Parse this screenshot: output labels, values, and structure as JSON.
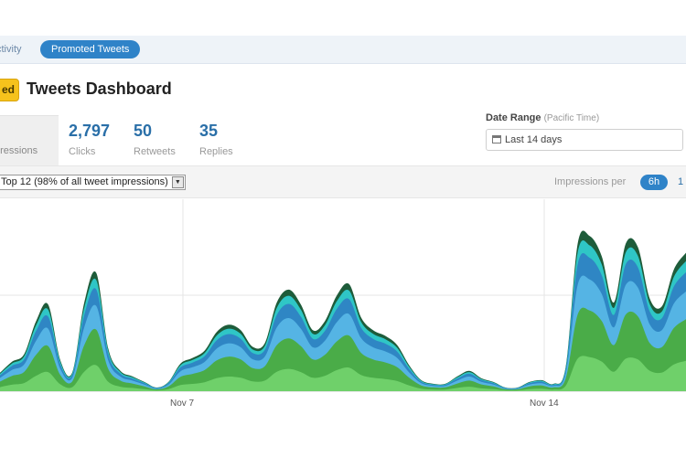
{
  "nav": {
    "tab_activity": "ctivity",
    "tab_promoted": "Promoted Tweets"
  },
  "header": {
    "badge": "ed",
    "title": "Tweets Dashboard"
  },
  "stats": [
    {
      "value": "",
      "label": "pressions"
    },
    {
      "value": "2,797",
      "label": "Clicks"
    },
    {
      "value": "50",
      "label": "Retweets"
    },
    {
      "value": "35",
      "label": "Replies"
    }
  ],
  "date_range": {
    "label": "Date Range",
    "sublabel": "(Pacific Time)",
    "value": "Last 14 days"
  },
  "toolbar": {
    "filter_value": "Top 12 (98% of all tweet impressions)",
    "impressions_per_label": "Impressions per",
    "interval_selected": "6h",
    "interval_next": "1"
  },
  "colors": {
    "accent": "#2f83c8",
    "series_dark_green": "#1e5c3a",
    "series_teal": "#2fc6c6",
    "series_blue": "#2f86c4",
    "series_light_blue": "#55b4e4",
    "series_green": "#4aac48",
    "series_light_green": "#6fd06a"
  },
  "chart_data": {
    "type": "area",
    "stacked": true,
    "x_tick_labels": [
      "Nov 7",
      "Nov 14"
    ],
    "grid": true,
    "series_colors": [
      "#6fd06a",
      "#4aac48",
      "#55b4e4",
      "#2f86c4",
      "#2fc6c6",
      "#1e5c3a"
    ],
    "totals": [
      0.1,
      0.16,
      0.2,
      0.38,
      0.47,
      0.17,
      0.1,
      0.48,
      0.64,
      0.23,
      0.11,
      0.08,
      0.05,
      0.02,
      0.05,
      0.15,
      0.18,
      0.22,
      0.32,
      0.36,
      0.33,
      0.24,
      0.26,
      0.48,
      0.55,
      0.47,
      0.33,
      0.38,
      0.52,
      0.58,
      0.4,
      0.33,
      0.3,
      0.25,
      0.14,
      0.06,
      0.04,
      0.04,
      0.08,
      0.11,
      0.07,
      0.05,
      0.02,
      0.02,
      0.05,
      0.06,
      0.04,
      0.13,
      0.8,
      0.84,
      0.73,
      0.48,
      0.8,
      0.78,
      0.5,
      0.46,
      0.66,
      0.75
    ]
  }
}
